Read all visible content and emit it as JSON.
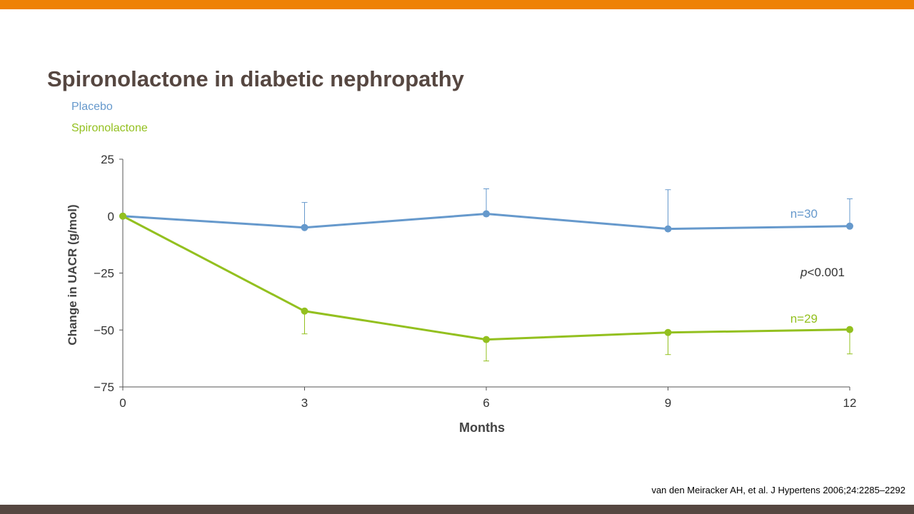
{
  "title": "Spironolactone in diabetic nephropathy",
  "citation": "van den Meiracker AH, et al. J Hypertens 2006;24:2285–2292",
  "colors": {
    "placebo": "#6699cc",
    "spironolactone": "#93c01f",
    "brand_orange": "#ee8206",
    "brand_brown": "#564741"
  },
  "chart_data": {
    "type": "line",
    "title": "",
    "xlabel": "Months",
    "ylabel": "Change in UACR (g/mol)",
    "x": [
      0,
      3,
      6,
      9,
      12
    ],
    "xticks": [
      "0",
      "3",
      "6",
      "9",
      "12"
    ],
    "yticks": [
      "25",
      "0",
      "−25",
      "−50",
      "−75"
    ],
    "ytick_values": [
      25,
      0,
      -25,
      -50,
      -75
    ],
    "xlim": [
      0,
      12
    ],
    "ylim": [
      -75,
      25
    ],
    "grid": false,
    "legend_placement": "top-left",
    "series": [
      {
        "name": "Placebo",
        "color": "#6699cc",
        "values": [
          0,
          -5,
          1,
          -5.6,
          -4.4
        ],
        "error_upper": [
          null,
          6,
          12,
          11.6,
          7.6
        ],
        "label": "n=30"
      },
      {
        "name": "Spironolactone",
        "color": "#93c01f",
        "values": [
          0,
          -41.7,
          -54.2,
          -51.1,
          -49.8
        ],
        "error_lower": [
          null,
          -51.7,
          -63.6,
          -60.8,
          -60.5
        ],
        "label": "n=29"
      }
    ],
    "annotation": {
      "prefix": "p",
      "text": "<0.001"
    }
  }
}
